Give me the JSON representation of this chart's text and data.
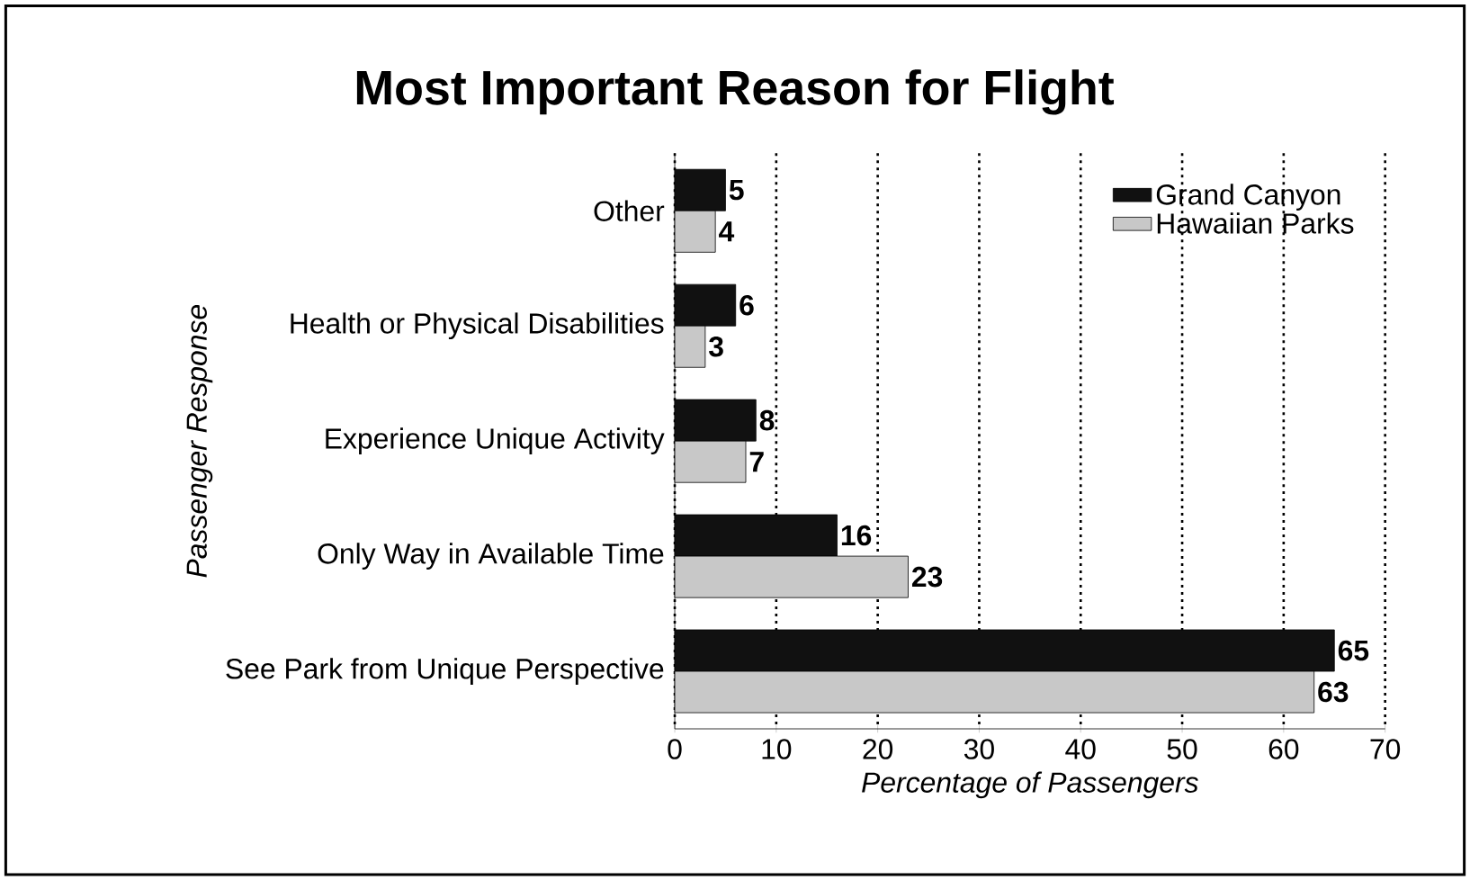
{
  "chart_data": {
    "type": "bar",
    "orientation": "horizontal",
    "title": "Most Important Reason for Flight",
    "xlabel": "Percentage of Passengers",
    "ylabel": "Passenger Response",
    "categories": [
      "Other",
      "Health or Physical Disabilities",
      "Experience Unique Activity",
      "Only Way in Available Time",
      "See Park from Unique Perspective"
    ],
    "series": [
      {
        "name": "Grand Canyon",
        "color": "#111111",
        "values": [
          5,
          6,
          8,
          16,
          65
        ]
      },
      {
        "name": "Hawaiian Parks",
        "color": "#c8c8c8",
        "values": [
          4,
          3,
          7,
          23,
          63
        ]
      }
    ],
    "xlim": [
      0,
      70
    ],
    "xticks": [
      0,
      10,
      20,
      30,
      40,
      50,
      60,
      70
    ],
    "grid": "x",
    "legend": "top right",
    "data_labels": true
  }
}
